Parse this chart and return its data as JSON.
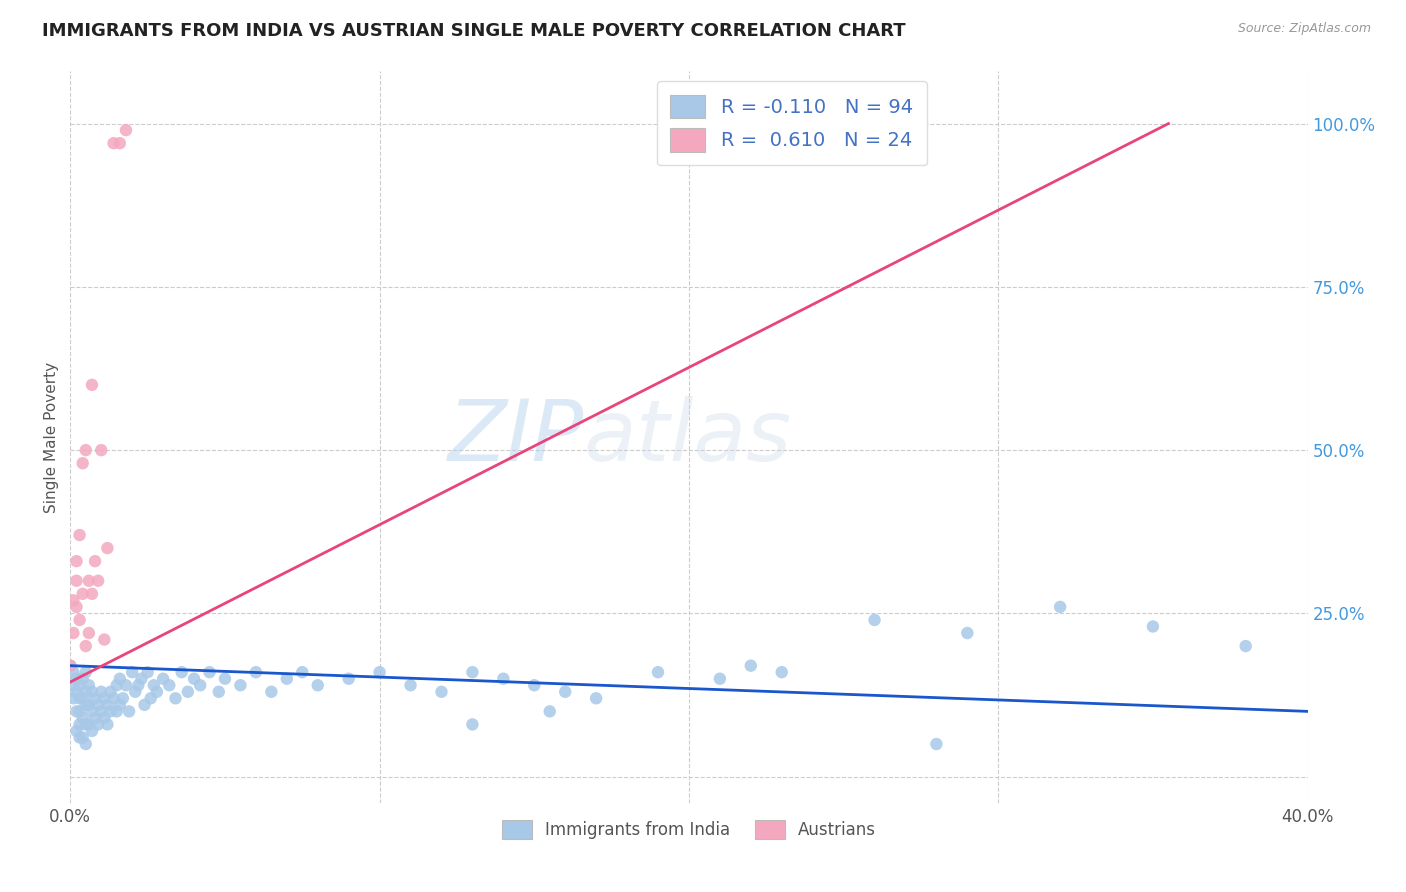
{
  "title": "IMMIGRANTS FROM INDIA VS AUSTRIAN SINGLE MALE POVERTY CORRELATION CHART",
  "source": "Source: ZipAtlas.com",
  "ylabel": "Single Male Poverty",
  "ytick_labels": [
    "25.0%",
    "50.0%",
    "75.0%",
    "100.0%"
  ],
  "ytick_values": [
    0.25,
    0.5,
    0.75,
    1.0
  ],
  "xlim": [
    0.0,
    0.4
  ],
  "ylim": [
    -0.04,
    1.08
  ],
  "legend_r_blue": "-0.110",
  "legend_n_blue": "94",
  "legend_r_pink": "0.610",
  "legend_n_pink": "24",
  "legend_label_blue": "Immigrants from India",
  "legend_label_pink": "Austrians",
  "blue_color": "#a8c8e8",
  "pink_color": "#f4a8c0",
  "blue_line_color": "#1a56cc",
  "pink_line_color": "#e8457a",
  "watermark_zip": "ZIP",
  "watermark_atlas": "atlas",
  "background_color": "#ffffff",
  "grid_color": "#cccccc",
  "blue_line_x": [
    0.0,
    0.4
  ],
  "blue_line_y": [
    0.17,
    0.1
  ],
  "pink_line_x": [
    0.0,
    0.355
  ],
  "pink_line_y": [
    0.145,
    1.0
  ],
  "blue_scatter_x": [
    0.0,
    0.001,
    0.001,
    0.001,
    0.002,
    0.002,
    0.002,
    0.002,
    0.003,
    0.003,
    0.003,
    0.003,
    0.003,
    0.004,
    0.004,
    0.004,
    0.004,
    0.005,
    0.005,
    0.005,
    0.005,
    0.005,
    0.006,
    0.006,
    0.006,
    0.007,
    0.007,
    0.007,
    0.008,
    0.008,
    0.009,
    0.009,
    0.01,
    0.01,
    0.011,
    0.011,
    0.012,
    0.012,
    0.013,
    0.013,
    0.014,
    0.015,
    0.015,
    0.016,
    0.016,
    0.017,
    0.018,
    0.019,
    0.02,
    0.021,
    0.022,
    0.023,
    0.024,
    0.025,
    0.026,
    0.027,
    0.028,
    0.03,
    0.032,
    0.034,
    0.036,
    0.038,
    0.04,
    0.042,
    0.045,
    0.048,
    0.05,
    0.055,
    0.06,
    0.065,
    0.07,
    0.075,
    0.08,
    0.09,
    0.1,
    0.11,
    0.12,
    0.13,
    0.14,
    0.15,
    0.16,
    0.17,
    0.19,
    0.21,
    0.23,
    0.26,
    0.29,
    0.32,
    0.35,
    0.38,
    0.13,
    0.155,
    0.22,
    0.28
  ],
  "blue_scatter_y": [
    0.17,
    0.16,
    0.14,
    0.12,
    0.15,
    0.13,
    0.1,
    0.07,
    0.14,
    0.12,
    0.1,
    0.08,
    0.06,
    0.15,
    0.12,
    0.09,
    0.06,
    0.16,
    0.13,
    0.11,
    0.08,
    0.05,
    0.14,
    0.11,
    0.08,
    0.13,
    0.1,
    0.07,
    0.12,
    0.09,
    0.11,
    0.08,
    0.13,
    0.1,
    0.12,
    0.09,
    0.11,
    0.08,
    0.13,
    0.1,
    0.12,
    0.14,
    0.1,
    0.15,
    0.11,
    0.12,
    0.14,
    0.1,
    0.16,
    0.13,
    0.14,
    0.15,
    0.11,
    0.16,
    0.12,
    0.14,
    0.13,
    0.15,
    0.14,
    0.12,
    0.16,
    0.13,
    0.15,
    0.14,
    0.16,
    0.13,
    0.15,
    0.14,
    0.16,
    0.13,
    0.15,
    0.16,
    0.14,
    0.15,
    0.16,
    0.14,
    0.13,
    0.16,
    0.15,
    0.14,
    0.13,
    0.12,
    0.16,
    0.15,
    0.16,
    0.24,
    0.22,
    0.26,
    0.23,
    0.2,
    0.08,
    0.1,
    0.17,
    0.05
  ],
  "pink_scatter_x": [
    0.0,
    0.001,
    0.001,
    0.002,
    0.002,
    0.002,
    0.003,
    0.003,
    0.004,
    0.004,
    0.005,
    0.005,
    0.006,
    0.006,
    0.007,
    0.007,
    0.008,
    0.009,
    0.01,
    0.011,
    0.012,
    0.014,
    0.016,
    0.018
  ],
  "pink_scatter_y": [
    0.17,
    0.22,
    0.27,
    0.3,
    0.26,
    0.33,
    0.24,
    0.37,
    0.28,
    0.48,
    0.5,
    0.2,
    0.3,
    0.22,
    0.28,
    0.6,
    0.33,
    0.3,
    0.5,
    0.21,
    0.35,
    0.97,
    0.97,
    0.99
  ]
}
